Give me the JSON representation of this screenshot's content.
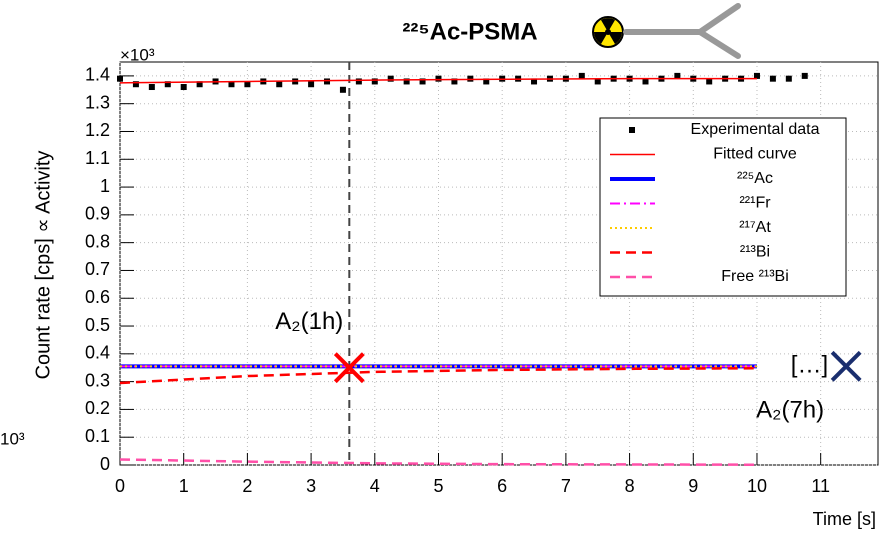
{
  "chart_data": {
    "type": "scatter",
    "title": "²²⁵Ac-PSMA",
    "x_label": "Time [s]",
    "y_label": "Count rate [cps] ∝ Activity",
    "y_exponent_label": "×10³",
    "edge_fragment": "10³",
    "xlim": [
      0,
      11.9
    ],
    "ylim": [
      0,
      1.45
    ],
    "xticks": [
      0,
      1,
      2,
      3,
      4,
      5,
      6,
      7,
      8,
      9,
      10,
      11
    ],
    "yticks": [
      0,
      0.1,
      0.2,
      0.3,
      0.4,
      0.5,
      0.6,
      0.7,
      0.8,
      0.9,
      1,
      1.1,
      1.2,
      1.3,
      1.4
    ],
    "grid": true,
    "legend": "upper right",
    "vline_x": 3.6,
    "series": [
      {
        "name": "Experimental data",
        "color": "#000000",
        "marker": "square",
        "x": [
          0,
          0.25,
          0.5,
          0.75,
          1,
          1.25,
          1.5,
          1.75,
          2,
          2.25,
          2.5,
          2.75,
          3,
          3.25,
          3.5,
          3.75,
          4,
          4.25,
          4.5,
          4.75,
          5,
          5.25,
          5.5,
          5.75,
          6,
          6.25,
          6.5,
          6.75,
          7,
          7.25,
          7.5,
          7.75,
          8,
          8.25,
          8.5,
          8.75,
          9,
          9.25,
          9.5,
          9.75,
          10,
          10.25,
          10.5,
          10.75
        ],
        "values": [
          1.39,
          1.37,
          1.36,
          1.37,
          1.36,
          1.37,
          1.38,
          1.37,
          1.37,
          1.38,
          1.37,
          1.38,
          1.37,
          1.38,
          1.35,
          1.38,
          1.38,
          1.39,
          1.38,
          1.38,
          1.39,
          1.38,
          1.39,
          1.38,
          1.39,
          1.39,
          1.38,
          1.39,
          1.39,
          1.4,
          1.38,
          1.39,
          1.39,
          1.38,
          1.39,
          1.4,
          1.39,
          1.38,
          1.39,
          1.39,
          1.4,
          1.39,
          1.39,
          1.4
        ]
      },
      {
        "name": "Fitted curve",
        "color": "#ff0000",
        "style": "solid",
        "line_width": 1.5,
        "x": [
          0,
          2,
          4,
          6,
          8,
          10
        ],
        "values": [
          1.375,
          1.38,
          1.385,
          1.388,
          1.39,
          1.39
        ]
      },
      {
        "name": "²²⁵Ac",
        "color": "#0000ff",
        "style": "solid",
        "line_width": 4,
        "x": [
          0,
          2,
          4,
          6,
          8,
          10
        ],
        "values": [
          0.355,
          0.355,
          0.355,
          0.355,
          0.355,
          0.355
        ]
      },
      {
        "name": "²²¹Fr",
        "color": "#ff00ff",
        "style": "dashdot",
        "line_width": 2,
        "x": [
          0,
          2,
          4,
          6,
          8,
          10
        ],
        "values": [
          0.355,
          0.355,
          0.355,
          0.355,
          0.355,
          0.355
        ]
      },
      {
        "name": "²¹⁷At",
        "color": "#ffcc00",
        "style": "dotted",
        "line_width": 2,
        "x": [
          0,
          2,
          4,
          6,
          8,
          10
        ],
        "values": [
          0.355,
          0.355,
          0.355,
          0.355,
          0.355,
          0.355
        ]
      },
      {
        "name": "²¹³Bi",
        "color": "#ff0000",
        "style": "dashed",
        "line_width": 2.5,
        "x": [
          0,
          2,
          4,
          6,
          8,
          10
        ],
        "values": [
          0.295,
          0.32,
          0.335,
          0.342,
          0.346,
          0.348
        ]
      },
      {
        "name": "Free ²¹³Bi",
        "color": "#ff4fa8",
        "style": "dashed",
        "line_width": 2.5,
        "x": [
          0,
          2,
          4,
          6,
          8,
          10
        ],
        "values": [
          0.02,
          0.012,
          0.006,
          0.003,
          0.002,
          0.001
        ]
      }
    ],
    "markers": [
      {
        "label": "A₂(1h)",
        "x": 3.6,
        "y": 0.35,
        "color": "#ff0000"
      },
      {
        "label": "A₂(7h)",
        "prefix": "[…]",
        "x": 11.4,
        "y": 0.355,
        "color": "#1a2e6e"
      }
    ]
  }
}
